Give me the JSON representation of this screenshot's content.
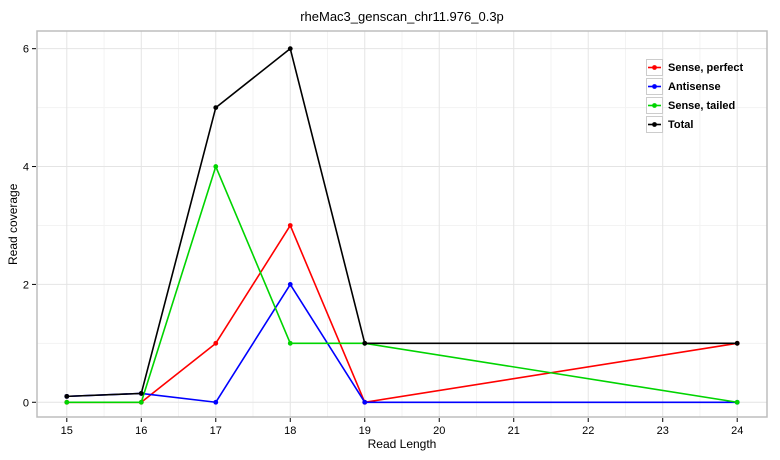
{
  "styles": {
    "background": "#FFFFFF",
    "panel_border": "#BDBDBD",
    "grid_major": "#E4E4E4",
    "grid_minor": "#F3F3F3",
    "tick_color": "#000000",
    "text_color": "#000000"
  },
  "chart_data": {
    "type": "line",
    "title": "rheMac3_genscan_chr11.976_0.3p",
    "xlabel": "Read Length",
    "ylabel": "Read coverage",
    "x": [
      15,
      16,
      17,
      18,
      19,
      24
    ],
    "series": [
      {
        "name": "Sense, perfect",
        "color": "#FF0000",
        "values": [
          0,
          0,
          1,
          3,
          0,
          1
        ]
      },
      {
        "name": "Antisense",
        "color": "#0000FF",
        "values": [
          0.1,
          0.15,
          0,
          2,
          0,
          0
        ]
      },
      {
        "name": "Sense, tailed",
        "color": "#00D400",
        "values": [
          0,
          0,
          4,
          1,
          1,
          0
        ]
      },
      {
        "name": "Total",
        "color": "#000000",
        "values": [
          0.1,
          0.15,
          5,
          6,
          1,
          1
        ]
      }
    ],
    "xticks": [
      15,
      16,
      17,
      18,
      19,
      20,
      21,
      22,
      23,
      24
    ],
    "yticks": [
      0,
      2,
      4,
      6
    ],
    "y_minor_ticks": [
      1,
      3,
      5
    ],
    "xlim": [
      14.6,
      24.4
    ],
    "ylim": [
      -0.25,
      6.3
    ],
    "grid": true,
    "marker": "circle",
    "legend_position": "top-right-inside"
  }
}
